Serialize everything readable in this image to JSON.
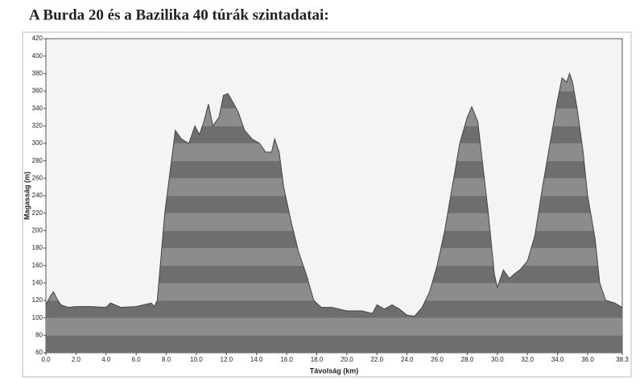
{
  "chart_data": {
    "type": "area",
    "title": "A Burda 20 és a Bazilika 40 túrák szintadatai:",
    "x_label": "Távolság (km)",
    "y_label": "Magasság (m)",
    "color": "#7a7a7a",
    "x": [
      0,
      0.3,
      0.5,
      0.8,
      1.0,
      1.5,
      2,
      3,
      4,
      4.3,
      5,
      6,
      7,
      7.2,
      7.4,
      7.9,
      8.6,
      9.0,
      9.5,
      9.9,
      10.2,
      10.5,
      10.8,
      11.1,
      11.5,
      11.8,
      12.1,
      12.5,
      12.8,
      13.2,
      13.7,
      14.2,
      14.6,
      15.0,
      15.2,
      15.5,
      15.8,
      16.3,
      16.8,
      17.3,
      17.8,
      18.3,
      19.0,
      20,
      21,
      21.7,
      22,
      22.5,
      23,
      23.5,
      24,
      24.5,
      25,
      25.5,
      26,
      26.5,
      27,
      27.5,
      28,
      28.3,
      28.7,
      29,
      29.4,
      29.8,
      30.0,
      30.4,
      30.8,
      31.1,
      31.5,
      32,
      32.5,
      33,
      33.5,
      34.0,
      34.3,
      34.6,
      34.8,
      35,
      35.3,
      35.7,
      36,
      36.5,
      36.8,
      37.2,
      37.8,
      38.3
    ],
    "values": [
      115,
      125,
      130,
      120,
      115,
      112,
      113,
      113,
      112,
      117,
      112,
      113,
      117,
      113,
      120,
      220,
      315,
      305,
      300,
      320,
      310,
      325,
      345,
      320,
      330,
      355,
      357,
      345,
      335,
      315,
      305,
      300,
      290,
      290,
      305,
      290,
      250,
      210,
      175,
      150,
      120,
      112,
      112,
      108,
      108,
      105,
      115,
      110,
      115,
      110,
      103,
      102,
      112,
      130,
      160,
      200,
      250,
      300,
      330,
      342,
      325,
      280,
      220,
      150,
      135,
      155,
      145,
      150,
      155,
      165,
      195,
      250,
      300,
      350,
      375,
      370,
      380,
      370,
      340,
      290,
      240,
      190,
      140,
      120,
      117,
      112
    ],
    "xlim": [
      0,
      38.3
    ],
    "ylim": [
      60,
      420
    ],
    "xticks": [
      {
        "value": 0,
        "label": "0.0"
      },
      {
        "value": 2,
        "label": "2.0"
      },
      {
        "value": 4,
        "label": "4.0"
      },
      {
        "value": 6,
        "label": "6.0"
      },
      {
        "value": 8,
        "label": "8.0"
      },
      {
        "value": 10,
        "label": "10.0"
      },
      {
        "value": 12,
        "label": "12.0"
      },
      {
        "value": 14,
        "label": "14.0"
      },
      {
        "value": 16,
        "label": "16.0"
      },
      {
        "value": 18,
        "label": "18.0"
      },
      {
        "value": 20,
        "label": "20.0"
      },
      {
        "value": 22,
        "label": "22.0"
      },
      {
        "value": 24,
        "label": "24.0"
      },
      {
        "value": 26,
        "label": "26.0"
      },
      {
        "value": 28,
        "label": "28.0"
      },
      {
        "value": 30,
        "label": "30.0"
      },
      {
        "value": 32,
        "label": "32.0"
      },
      {
        "value": 34,
        "label": "34.0"
      },
      {
        "value": 36,
        "label": "36.0"
      },
      38.3
    ],
    "yticks": [
      60,
      80,
      100,
      120,
      140,
      160,
      180,
      200,
      220,
      240,
      260,
      280,
      300,
      320,
      340,
      360,
      380,
      400,
      420
    ]
  }
}
